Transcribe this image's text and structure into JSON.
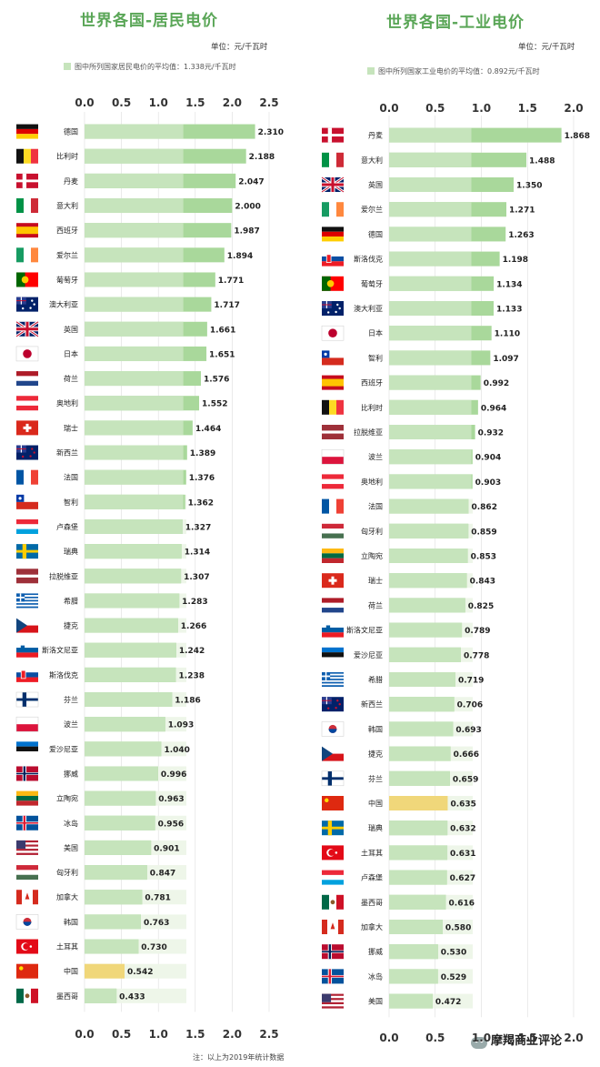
{
  "panels": [
    {
      "title": "世界各国-居民电价",
      "unit": "单位：元/千瓦时",
      "avg_note": "图中所列国家居民电价的平均值：1.338元/千瓦时",
      "footnote": "注：以上为2019年统计数据"
    },
    {
      "title": "世界各国-工业电价",
      "unit": "单位：元/千瓦时",
      "avg_note": "图中所列国家工业电价的平均值：0.892元/千瓦时",
      "footnote": ""
    }
  ],
  "watermark": "摩羯商业评论",
  "colors": {
    "title": "#5aa657",
    "bar": "#a9d89b",
    "bar_track": "#eef6e9",
    "highlight": "#f0d77a",
    "grid": "#dddddd"
  },
  "chart_data": [
    {
      "type": "bar",
      "orientation": "horizontal",
      "title": "世界各国-居民电价",
      "xlim": [
        0,
        2.5
      ],
      "ticks": [
        "0.0",
        "0.5",
        "1.0",
        "1.5",
        "2.0",
        "2.5"
      ],
      "average": 1.338,
      "highlight": "中国",
      "categories": [
        "德国",
        "比利时",
        "丹麦",
        "意大利",
        "西班牙",
        "爱尔兰",
        "葡萄牙",
        "澳大利亚",
        "英国",
        "日本",
        "荷兰",
        "奥地利",
        "瑞士",
        "新西兰",
        "法国",
        "智利",
        "卢森堡",
        "瑞典",
        "拉脱维亚",
        "希腊",
        "捷克",
        "斯洛文尼亚",
        "斯洛伐克",
        "芬兰",
        "波兰",
        "爱沙尼亚",
        "挪威",
        "立陶宛",
        "冰岛",
        "美国",
        "匈牙利",
        "加拿大",
        "韩国",
        "土耳其",
        "中国",
        "墨西哥"
      ],
      "values": [
        2.31,
        2.188,
        2.047,
        2.0,
        1.987,
        1.894,
        1.771,
        1.717,
        1.661,
        1.651,
        1.576,
        1.552,
        1.464,
        1.389,
        1.376,
        1.362,
        1.327,
        1.314,
        1.307,
        1.283,
        1.266,
        1.242,
        1.238,
        1.186,
        1.093,
        1.04,
        0.996,
        0.963,
        0.956,
        0.901,
        0.847,
        0.781,
        0.763,
        0.73,
        0.542,
        0.433
      ],
      "labels": [
        "2.310",
        "2.188",
        "2.047",
        "2.000",
        "1.987",
        "1.894",
        "1.771",
        "1.717",
        "1.661",
        "1.651",
        "1.576",
        "1.552",
        "1.464",
        "1.389",
        "1.376",
        "1.362",
        "1.327",
        "1.314",
        "1.307",
        "1.283",
        "1.266",
        "1.242",
        "1.238",
        "1.186",
        "1.093",
        "1.040",
        "0.996",
        "0.963",
        "0.956",
        "0.901",
        "0.847",
        "0.781",
        "0.763",
        "0.730",
        "0.542",
        "0.433"
      ],
      "flags": [
        "germany",
        "belgium",
        "denmark",
        "italy",
        "spain",
        "ireland",
        "portugal",
        "australia",
        "uk",
        "japan",
        "netherlands",
        "austria",
        "switzerland",
        "newzealand",
        "france",
        "chile",
        "luxembourg",
        "sweden",
        "latvia",
        "greece",
        "czech",
        "slovenia",
        "slovakia",
        "finland",
        "poland",
        "estonia",
        "norway",
        "lithuania",
        "iceland",
        "usa",
        "hungary",
        "canada",
        "korea",
        "turkey",
        "china",
        "mexico"
      ]
    },
    {
      "type": "bar",
      "orientation": "horizontal",
      "title": "世界各国-工业电价",
      "xlim": [
        0,
        2.0
      ],
      "ticks": [
        "0.0",
        "0.5",
        "1.0",
        "1.5",
        "2.0"
      ],
      "average": 0.892,
      "highlight": "中国",
      "categories": [
        "丹麦",
        "意大利",
        "英国",
        "爱尔兰",
        "德国",
        "斯洛伐克",
        "葡萄牙",
        "澳大利亚",
        "日本",
        "智利",
        "西班牙",
        "比利时",
        "拉脱维亚",
        "波兰",
        "奥地利",
        "法国",
        "匈牙利",
        "立陶宛",
        "瑞士",
        "荷兰",
        "斯洛文尼亚",
        "爱沙尼亚",
        "希腊",
        "新西兰",
        "韩国",
        "捷克",
        "芬兰",
        "中国",
        "瑞典",
        "土耳其",
        "卢森堡",
        "墨西哥",
        "加拿大",
        "挪威",
        "冰岛",
        "美国"
      ],
      "values": [
        1.868,
        1.488,
        1.35,
        1.271,
        1.263,
        1.198,
        1.134,
        1.133,
        1.11,
        1.097,
        0.992,
        0.964,
        0.932,
        0.904,
        0.903,
        0.862,
        0.859,
        0.853,
        0.843,
        0.825,
        0.789,
        0.778,
        0.719,
        0.706,
        0.693,
        0.666,
        0.659,
        0.635,
        0.632,
        0.631,
        0.627,
        0.616,
        0.58,
        0.53,
        0.529,
        0.472
      ],
      "labels": [
        "1.868",
        "1.488",
        "1.350",
        "1.271",
        "1.263",
        "1.198",
        "1.134",
        "1.133",
        "1.110",
        "1.097",
        "0.992",
        "0.964",
        "0.932",
        "0.904",
        "0.903",
        "0.862",
        "0.859",
        "0.853",
        "0.843",
        "0.825",
        "0.789",
        "0.778",
        "0.719",
        "0.706",
        "0.693",
        "0.666",
        "0.659",
        "0.635",
        "0.632",
        "0.631",
        "0.627",
        "0.616",
        "0.580",
        "0.530",
        "0.529",
        "0.472"
      ],
      "flags": [
        "denmark",
        "italy",
        "uk",
        "ireland",
        "germany",
        "slovakia",
        "portugal",
        "australia",
        "japan",
        "chile",
        "spain",
        "belgium",
        "latvia",
        "poland",
        "austria",
        "france",
        "hungary",
        "lithuania",
        "switzerland",
        "netherlands",
        "slovenia",
        "estonia",
        "greece",
        "newzealand",
        "korea",
        "czech",
        "finland",
        "china",
        "sweden",
        "turkey",
        "luxembourg",
        "mexico",
        "canada",
        "norway",
        "iceland",
        "usa"
      ]
    }
  ]
}
